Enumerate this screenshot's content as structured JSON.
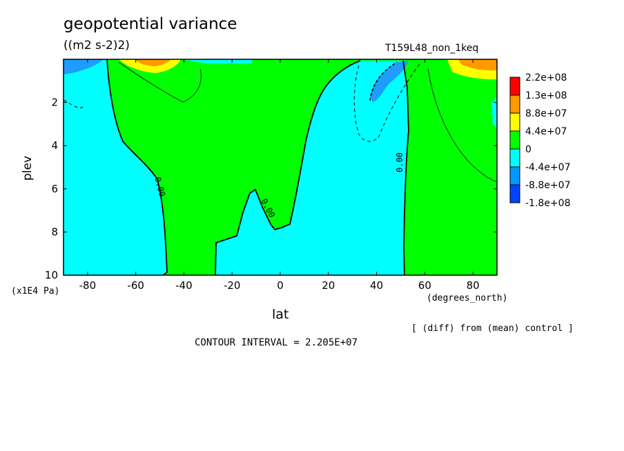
{
  "chart_data": {
    "type": "heatmap",
    "title": "geopotential variance",
    "units": "((m2 s-2)2)",
    "run_label": "T159L48_non_1keq",
    "xlabel": "lat",
    "xunit": "(degrees_north)",
    "ylabel": "plev",
    "yunit": "(x1E4 Pa)",
    "note": "[ (diff) from (mean) control ]",
    "contour_interval": "CONTOUR INTERVAL = 2.205E+07",
    "contour_label": "0.00",
    "xlim": [
      -90,
      90
    ],
    "ylim": [
      0,
      10
    ],
    "y_inverted": true,
    "x_ticks": [
      "-80",
      "-60",
      "-40",
      "-20",
      "0",
      "20",
      "40",
      "60",
      "80"
    ],
    "y_ticks": [
      "2",
      "4",
      "6",
      "8",
      "10"
    ],
    "legend": {
      "labels": [
        "2.2e+08",
        "1.3e+08",
        "8.8e+07",
        "4.4e+07",
        "0",
        "-4.4e+07",
        "-8.8e+07",
        "-1.8e+08"
      ],
      "colors": [
        "#ff0000",
        "#ff9900",
        "#ffff00",
        "#00ff00",
        "#00ffff",
        "#0099ff",
        "#0044ff"
      ]
    },
    "colors": {
      "positive": "#00ff00",
      "negative": "#00ffff",
      "strong_negative": "#1e9cff",
      "weak_positive": "#ffff00",
      "mid_positive": "#ff9900"
    }
  }
}
